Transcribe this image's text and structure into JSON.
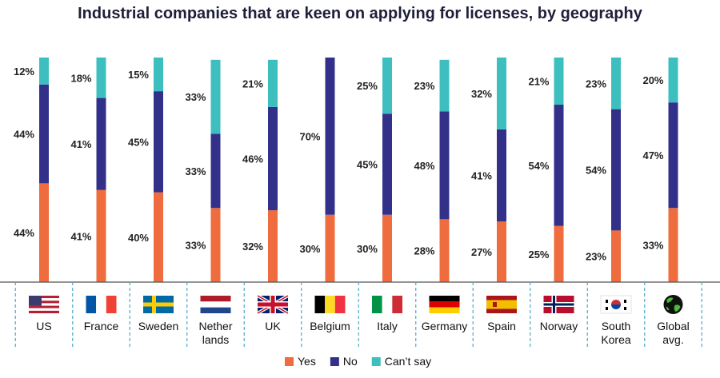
{
  "chart_data": {
    "type": "bar",
    "stacked": true,
    "title": "Industrial companies that are keen on applying for licenses, by geography",
    "categories": [
      "US",
      "France",
      "Sweden",
      "Nether lands",
      "UK",
      "Belgium",
      "Italy",
      "Germany",
      "Spain",
      "Norway",
      "South Korea",
      "Global avg."
    ],
    "category_lines": [
      [
        "US"
      ],
      [
        "France"
      ],
      [
        "Sweden"
      ],
      [
        "Nether",
        "lands"
      ],
      [
        "UK"
      ],
      [
        "Belgium"
      ],
      [
        "Italy"
      ],
      [
        "Germany"
      ],
      [
        "Spain"
      ],
      [
        "Norway"
      ],
      [
        "South",
        "Korea"
      ],
      [
        "Global",
        "avg."
      ]
    ],
    "flags": [
      "us-flag-icon",
      "france-flag-icon",
      "sweden-flag-icon",
      "netherlands-flag-icon",
      "uk-flag-icon",
      "belgium-flag-icon",
      "italy-flag-icon",
      "germany-flag-icon",
      "spain-flag-icon",
      "norway-flag-icon",
      "south-korea-flag-icon",
      "globe-icon"
    ],
    "series": [
      {
        "name": "Yes",
        "color": "#EE6C3D",
        "values": [
          44,
          41,
          40,
          33,
          32,
          30,
          30,
          28,
          27,
          25,
          23,
          33
        ]
      },
      {
        "name": "No",
        "color": "#33308A",
        "values": [
          44,
          41,
          45,
          33,
          46,
          70,
          45,
          48,
          41,
          54,
          54,
          47
        ]
      },
      {
        "name": "Can’t say",
        "color": "#3DBFBF",
        "values": [
          12,
          18,
          15,
          33,
          21,
          null,
          25,
          23,
          32,
          21,
          23,
          20
        ]
      }
    ],
    "labels": [
      [
        "44%",
        "41%",
        "40%",
        "33%",
        "32%",
        "30%",
        "30%",
        "28%",
        "27%",
        "25%",
        "23%",
        "33%"
      ],
      [
        "44%",
        "41%",
        "45%",
        "33%",
        "46%",
        "70%",
        "45%",
        "48%",
        "41%",
        "54%",
        "54%",
        "47%"
      ],
      [
        "12%",
        "18%",
        "15%",
        "33%",
        "21%",
        "",
        "25%",
        "23%",
        "32%",
        "21%",
        "23%",
        "20%"
      ]
    ],
    "ylim": [
      0,
      100
    ],
    "legend_position": "bottom-center"
  }
}
